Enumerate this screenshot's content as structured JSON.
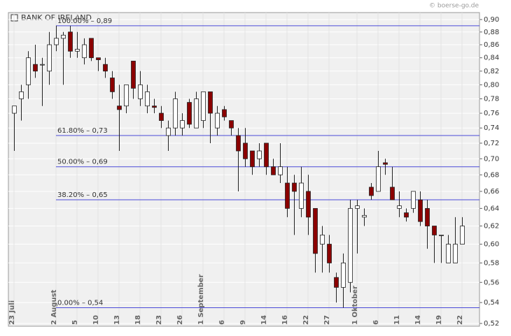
{
  "chart_data": {
    "type": "candlestick",
    "source": "© boerse-go.de",
    "log_scale": true,
    "grid": true,
    "up_color": "#ffffff",
    "down_color": "#8b0000",
    "level_color": "#4a4ad8",
    "ylim": [
      0.5174,
      0.9114
    ],
    "yticks": [
      {
        "value": 0.52,
        "label": "0,52"
      },
      {
        "value": 0.54,
        "label": "0,54"
      },
      {
        "value": 0.56,
        "label": "0,56"
      },
      {
        "value": 0.58,
        "label": "0,58"
      },
      {
        "value": 0.6,
        "label": "0,60"
      },
      {
        "value": 0.62,
        "label": "0,62"
      },
      {
        "value": 0.64,
        "label": "0,64"
      },
      {
        "value": 0.66,
        "label": "0,66"
      },
      {
        "value": 0.68,
        "label": "0,68"
      },
      {
        "value": 0.7,
        "label": "0,70"
      },
      {
        "value": 0.72,
        "label": "0,72"
      },
      {
        "value": 0.74,
        "label": "0,74"
      },
      {
        "value": 0.76,
        "label": "0,76"
      },
      {
        "value": 0.78,
        "label": "0,78"
      },
      {
        "value": 0.8,
        "label": "0,80"
      },
      {
        "value": 0.82,
        "label": "0,82"
      },
      {
        "value": 0.84,
        "label": "0,84"
      },
      {
        "value": 0.86,
        "label": "0,86"
      },
      {
        "value": 0.88,
        "label": "0,88"
      },
      {
        "value": 0.9,
        "label": "0,90"
      }
    ],
    "levels": [
      {
        "value": 0.89,
        "label": "100.00% – 0,89"
      },
      {
        "value": 0.73,
        "label": "61.80% – 0,73"
      },
      {
        "value": 0.69,
        "label": "50.00% – 0,69"
      },
      {
        "value": 0.65,
        "label": "38.20% – 0,65"
      },
      {
        "value": 0.535,
        "label": "0.00% – 0,54"
      }
    ],
    "categories": [
      "23 Juli",
      null,
      null,
      null,
      null,
      null,
      "2 August",
      null,
      null,
      "5",
      null,
      null,
      "10",
      null,
      null,
      "13",
      null,
      null,
      "18",
      null,
      null,
      "23",
      null,
      null,
      "26",
      null,
      null,
      "1 September",
      null,
      null,
      "6",
      null,
      null,
      "9",
      null,
      null,
      "14",
      null,
      null,
      "16",
      null,
      null,
      "22",
      null,
      null,
      "27",
      null,
      null,
      null,
      "1 Oktober",
      null,
      null,
      "6",
      null,
      null,
      "11",
      null,
      null,
      "14",
      null,
      null,
      "19",
      null,
      null,
      "22"
    ],
    "series": [
      {
        "name": "BANK OF IRELAND",
        "open": [
          0.76,
          0.78,
          0.8,
          0.83,
          0.83,
          0.82,
          0.86,
          0.87,
          0.88,
          0.85,
          0.84,
          0.87,
          0.84,
          0.83,
          0.81,
          0.77,
          0.77,
          0.835,
          0.78,
          0.77,
          0.77,
          0.76,
          0.73,
          0.74,
          0.74,
          0.775,
          0.74,
          0.75,
          0.79,
          0.74,
          0.765,
          0.75,
          0.73,
          0.72,
          0.71,
          0.7,
          0.72,
          0.69,
          0.68,
          0.67,
          0.67,
          0.64,
          0.66,
          0.64,
          0.6,
          0.6,
          0.565,
          0.555,
          0.56,
          0.64,
          0.63,
          0.665,
          0.66,
          0.695,
          0.665,
          0.64,
          0.635,
          0.64,
          0.65,
          0.64,
          0.62,
          0.61,
          0.58,
          0.58,
          0.6
        ],
        "high": [
          0.77,
          0.8,
          0.85,
          0.86,
          0.84,
          0.88,
          0.89,
          0.88,
          0.89,
          0.88,
          0.87,
          0.87,
          0.84,
          0.84,
          0.82,
          0.8,
          0.8,
          0.835,
          0.82,
          0.8,
          0.78,
          0.77,
          0.75,
          0.79,
          0.76,
          0.78,
          0.79,
          0.79,
          0.79,
          0.77,
          0.77,
          0.75,
          0.74,
          0.74,
          0.71,
          0.72,
          0.72,
          0.7,
          0.72,
          0.69,
          0.68,
          0.69,
          0.68,
          0.64,
          0.62,
          0.61,
          0.57,
          0.59,
          0.65,
          0.65,
          0.64,
          0.67,
          0.71,
          0.7,
          0.69,
          0.66,
          0.64,
          0.66,
          0.66,
          0.65,
          0.62,
          0.61,
          0.61,
          0.63,
          0.63
        ],
        "low": [
          0.71,
          0.75,
          0.78,
          0.81,
          0.77,
          0.8,
          0.85,
          0.8,
          0.84,
          0.84,
          0.83,
          0.835,
          0.82,
          0.81,
          0.78,
          0.71,
          0.76,
          0.78,
          0.77,
          0.76,
          0.76,
          0.74,
          0.71,
          0.73,
          0.73,
          0.74,
          0.74,
          0.74,
          0.72,
          0.73,
          0.75,
          0.73,
          0.66,
          0.69,
          0.68,
          0.69,
          0.68,
          0.68,
          0.67,
          0.63,
          0.61,
          0.63,
          0.61,
          0.57,
          0.57,
          0.57,
          0.54,
          0.535,
          0.55,
          0.59,
          0.62,
          0.65,
          0.66,
          0.68,
          0.65,
          0.63,
          0.625,
          0.635,
          0.62,
          0.595,
          0.58,
          0.58,
          0.58,
          0.58,
          0.6
        ],
        "close": [
          0.77,
          0.79,
          0.84,
          0.82,
          0.83,
          0.86,
          0.87,
          0.875,
          0.85,
          0.853,
          0.86,
          0.84,
          0.837,
          0.82,
          0.79,
          0.765,
          0.8,
          0.795,
          0.8,
          0.79,
          0.768,
          0.75,
          0.74,
          0.78,
          0.75,
          0.745,
          0.78,
          0.79,
          0.76,
          0.76,
          0.755,
          0.74,
          0.71,
          0.7,
          0.69,
          0.71,
          0.69,
          0.68,
          0.69,
          0.64,
          0.66,
          0.67,
          0.63,
          0.59,
          0.61,
          0.58,
          0.555,
          0.58,
          0.64,
          0.643,
          0.632,
          0.655,
          0.69,
          0.693,
          0.65,
          0.643,
          0.63,
          0.66,
          0.625,
          0.62,
          0.61,
          0.61,
          0.6,
          0.6,
          0.62
        ]
      }
    ]
  }
}
